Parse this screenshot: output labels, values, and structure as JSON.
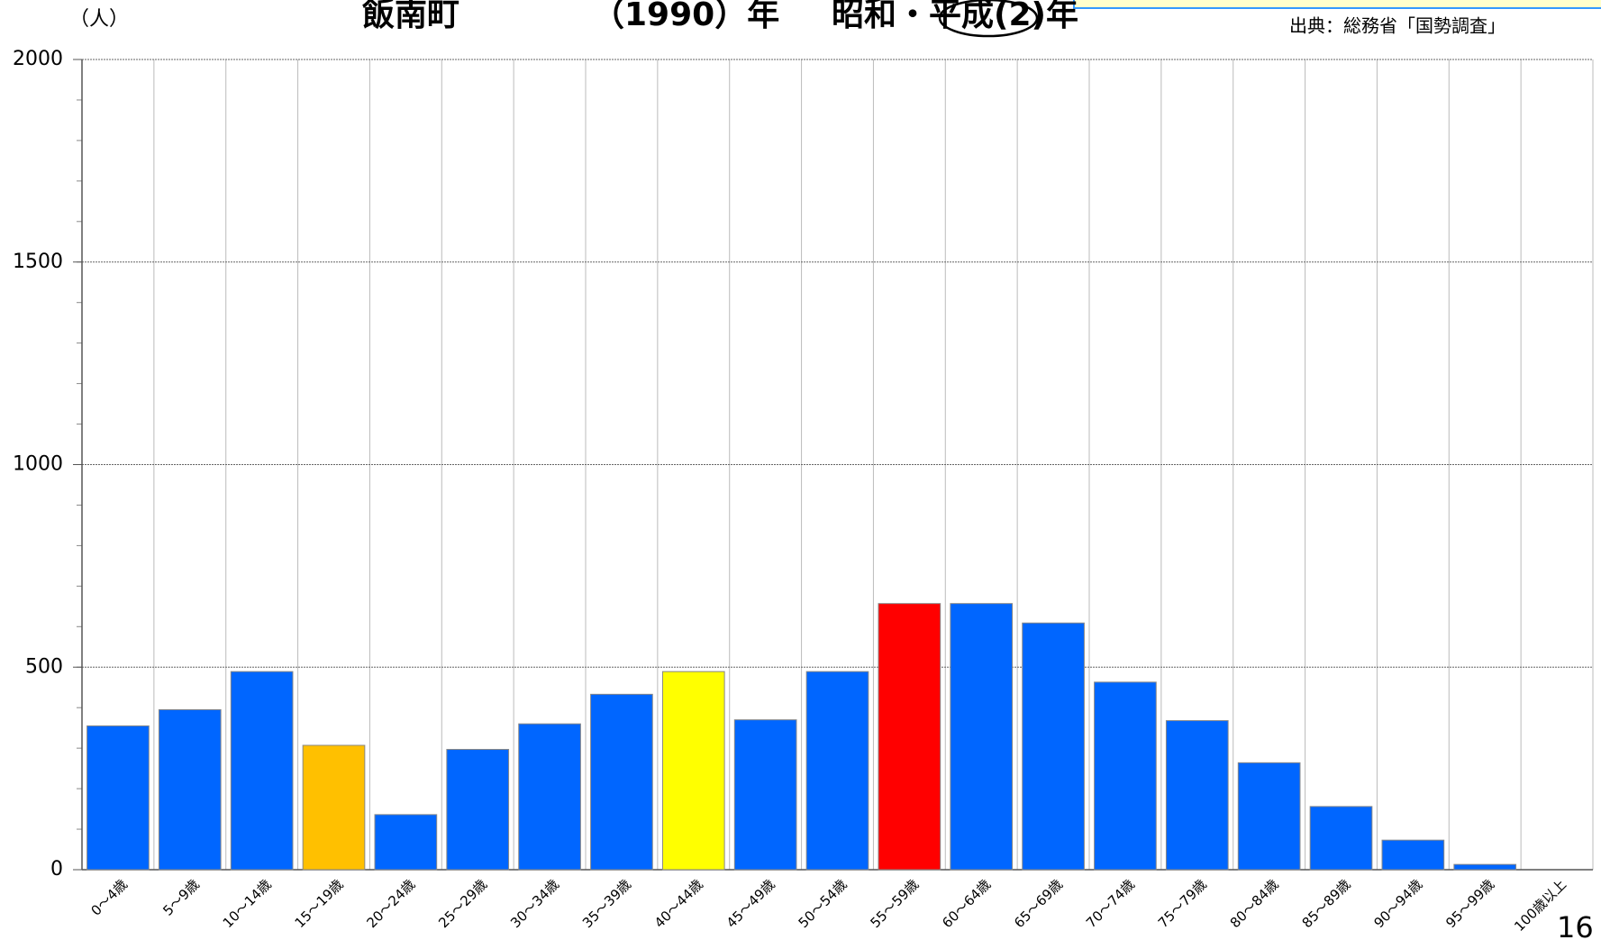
{
  "chart_data": {
    "type": "bar",
    "title_parts": [
      "飯南町",
      "（1990）年",
      "昭和・平成(2)年"
    ],
    "y_unit": "（人）",
    "source": "出典：総務省「国勢調査」",
    "page_number": "16",
    "categories": [
      "0～4歳",
      "5～9歳",
      "10～14歳",
      "15～19歳",
      "20～24歳",
      "25～29歳",
      "30～34歳",
      "35～39歳",
      "40～44歳",
      "45～49歳",
      "50～54歳",
      "55～59歳",
      "60～64歳",
      "65～69歳",
      "70～74歳",
      "75～79歳",
      "80～84歳",
      "85～89歳",
      "90～94歳",
      "95～99歳",
      "100歳以上"
    ],
    "values": [
      355,
      395,
      489,
      307,
      136,
      297,
      360,
      433,
      489,
      370,
      489,
      657,
      657,
      609,
      463,
      368,
      264,
      156,
      73,
      13,
      0
    ],
    "colors": [
      "#0066ff",
      "#0066ff",
      "#0066ff",
      "#ffc000",
      "#0066ff",
      "#0066ff",
      "#0066ff",
      "#0066ff",
      "#ffff00",
      "#0066ff",
      "#0066ff",
      "#ff0000",
      "#0066ff",
      "#0066ff",
      "#0066ff",
      "#0066ff",
      "#0066ff",
      "#0066ff",
      "#0066ff",
      "#0066ff",
      "#0066ff"
    ],
    "ylim": [
      0,
      2000
    ],
    "yticks": [
      0,
      500,
      1000,
      1500,
      2000
    ],
    "grid": true
  }
}
